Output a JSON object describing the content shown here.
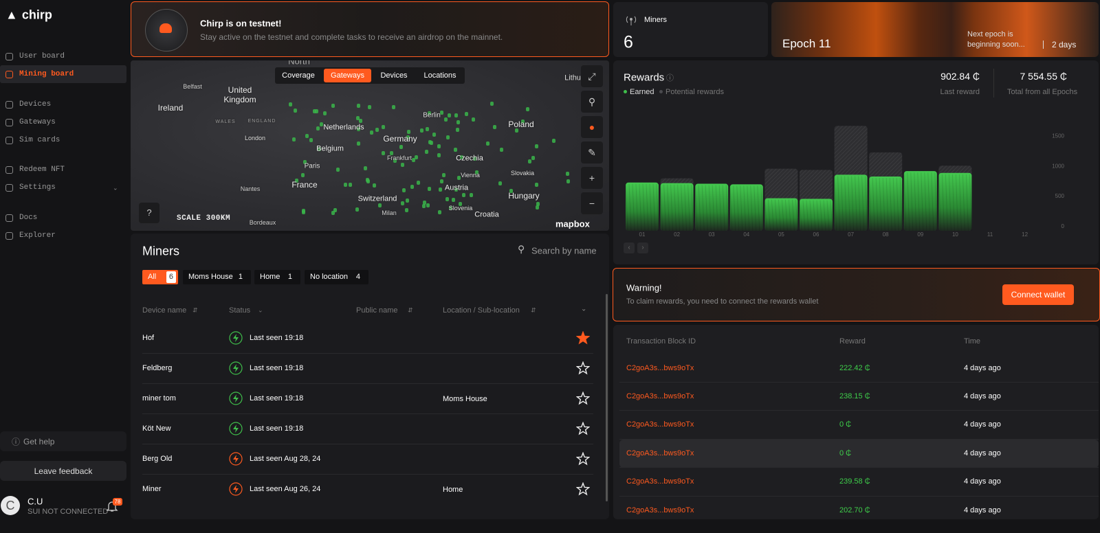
{
  "sidebar": {
    "logo": "chirp",
    "nav": [
      "User board",
      "Mining board",
      "Devices",
      "Gateways",
      "Sim cards",
      "Redeem NFT",
      "Settings",
      "Docs",
      "Explorer"
    ],
    "active_index": 1,
    "get_help": "Get help",
    "leave_feedback": "Leave feedback",
    "user": {
      "avatar": "C",
      "name": "C.U",
      "status": "SUI NOT CONNECTED",
      "notifications": "78"
    }
  },
  "banner": {
    "title": "Chirp is on testnet!",
    "text": "Stay active on the testnet and complete tasks to receive an airdrop on the mainnet."
  },
  "map": {
    "tabs": [
      "Coverage",
      "Gateways",
      "Devices",
      "Locations"
    ],
    "active_tab": 1,
    "labels": [
      "North",
      "Belfast",
      "United Kingdom",
      "Ireland",
      "WALES",
      "ENGLAND",
      "London",
      "Netherlands",
      "Belgium",
      "Germany",
      "Berlin",
      "Frankfurt",
      "Poland",
      "Czechia",
      "Paris",
      "Vienna",
      "Slovakia",
      "France",
      "Austria",
      "Hungary",
      "Nantes",
      "Switzerland",
      "Slovenia",
      "Milan",
      "Croatia",
      "Bordeaux",
      "Lithu"
    ],
    "scale": "SCALE 300KM",
    "attribution": "mapbox"
  },
  "miners": {
    "title": "Miners",
    "search_placeholder": "Search by name",
    "filters": [
      {
        "label": "All",
        "count": "6"
      },
      {
        "label": "Moms House",
        "count": "1"
      },
      {
        "label": "Home",
        "count": "1"
      },
      {
        "label": "No location",
        "count": "4"
      }
    ],
    "columns": [
      "Device name",
      "Status",
      "Public name",
      "Location / Sub-location"
    ],
    "rows": [
      {
        "device": "Hof",
        "status": "Last seen 19:18",
        "online": true,
        "favorite": true
      },
      {
        "device": "Feldberg",
        "status": "Last seen 19:18",
        "online": true,
        "favorite": false
      },
      {
        "device": "miner tom",
        "status": "Last seen 19:18",
        "location": "Moms House",
        "online": true,
        "favorite": false
      },
      {
        "device": "Köt New",
        "status": "Last seen 19:18",
        "online": true,
        "favorite": false
      },
      {
        "device": "Berg Old",
        "status": "Last seen Aug 28, 24",
        "online": false,
        "favorite": false
      },
      {
        "device": "Miner",
        "status": "Last seen Aug 26, 24",
        "location": "Home",
        "online": false,
        "favorite": false
      }
    ]
  },
  "stats": {
    "miners_label": "Miners",
    "miners_count": "6",
    "epoch": "Epoch 11",
    "next_epoch_1": "Next epoch is",
    "next_epoch_2": "beginning soon...",
    "remaining": "2 days"
  },
  "rewards": {
    "title": "Rewards",
    "last_reward": "902.84 ₵",
    "last_reward_label": "Last reward",
    "total": "7 554.55 ₵",
    "total_label": "Total from all Epochs"
  },
  "chart_data": {
    "type": "bar",
    "categories": [
      "01",
      "02",
      "03",
      "04",
      "05",
      "06",
      "07",
      "08",
      "09",
      "10",
      "11",
      "12"
    ],
    "series": [
      {
        "name": "Earned",
        "color": "#3fbf4b",
        "values": [
          800,
          790,
          780,
          770,
          540,
          530,
          930,
          900,
          990,
          960,
          null,
          null
        ]
      },
      {
        "name": "Potential rewards",
        "color": "#4a4a4e",
        "values": [
          800,
          870,
          780,
          770,
          1030,
          1010,
          1740,
          1300,
          990,
          1080,
          null,
          null
        ]
      }
    ],
    "ylim": [
      0,
      1800
    ],
    "yticks": [
      0,
      500,
      1000,
      1500
    ]
  },
  "warning": {
    "title": "Warning!",
    "text": "To claim rewards, you need to connect the rewards wallet",
    "button": "Connect wallet"
  },
  "transactions": {
    "columns": [
      "Transaction Block ID",
      "Reward",
      "Time"
    ],
    "rows": [
      {
        "id": "C2goA3s...bws9oTx",
        "reward": "222.42 ₵",
        "time": "4 days ago"
      },
      {
        "id": "C2goA3s...bws9oTx",
        "reward": "238.15 ₵",
        "time": "4 days ago"
      },
      {
        "id": "C2goA3s...bws9oTx",
        "reward": "0 ₵",
        "time": "4 days ago"
      },
      {
        "id": "C2goA3s...bws9oTx",
        "reward": "0 ₵",
        "time": "4 days ago"
      },
      {
        "id": "C2goA3s...bws9oTx",
        "reward": "239.58 ₵",
        "time": "4 days ago"
      },
      {
        "id": "C2goA3s...bws9oTx",
        "reward": "202.70 ₵",
        "time": "4 days ago"
      }
    ]
  }
}
